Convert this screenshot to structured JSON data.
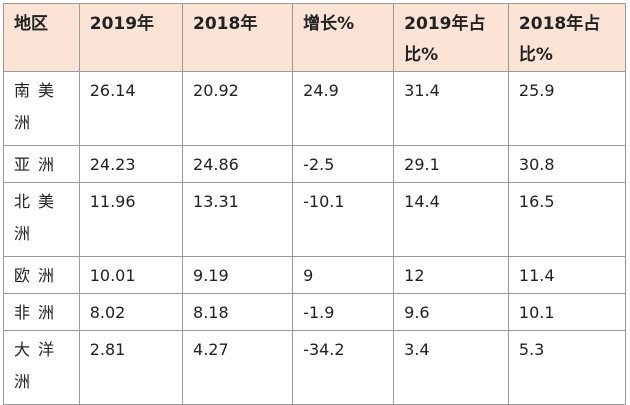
{
  "table": {
    "headers": [
      "地区",
      "2019年",
      "2018年",
      "增长%",
      "2019年占比%",
      "2018年占比%"
    ],
    "rows": [
      {
        "region": "南美洲",
        "v2019": "26.14",
        "v2018": "20.92",
        "growth": "24.9",
        "share2019": "31.4",
        "share2018": "25.9"
      },
      {
        "region": "亚洲",
        "v2019": "24.23",
        "v2018": "24.86",
        "growth": "-2.5",
        "share2019": "29.1",
        "share2018": "30.8"
      },
      {
        "region": "北美洲",
        "v2019": "11.96",
        "v2018": "13.31",
        "growth": "-10.1",
        "share2019": "14.4",
        "share2018": "16.5"
      },
      {
        "region": "欧洲",
        "v2019": "10.01",
        "v2018": "9.19",
        "growth": "9",
        "share2019": "12",
        "share2018": "11.4"
      },
      {
        "region": "非洲",
        "v2019": "8.02",
        "v2018": "8.18",
        "growth": "-1.9",
        "share2019": "9.6",
        "share2018": "10.1"
      },
      {
        "region": "大洋洲",
        "v2019": "2.81",
        "v2018": "4.27",
        "growth": "-34.2",
        "share2019": "3.4",
        "share2018": "5.3"
      }
    ]
  },
  "colors": {
    "header_bg": "#fbe4d5",
    "border": "#9a9a9a",
    "text": "#222222"
  }
}
